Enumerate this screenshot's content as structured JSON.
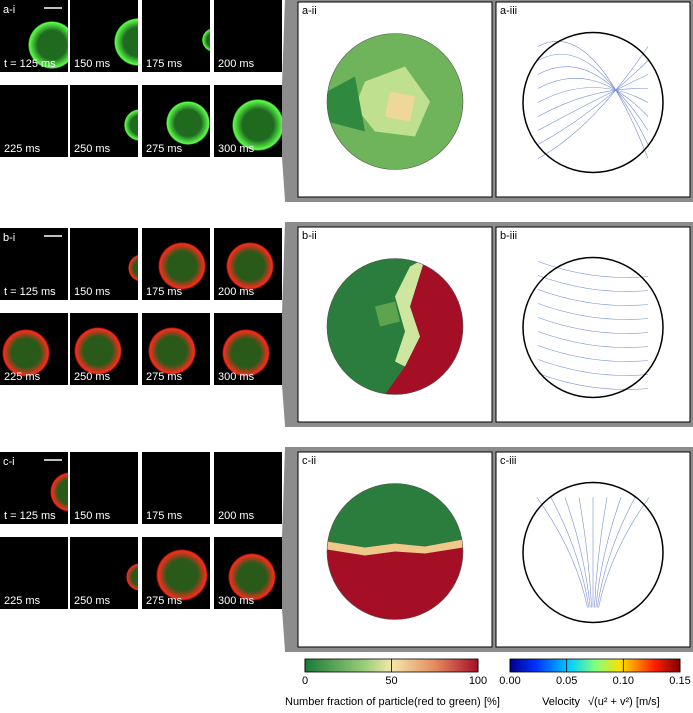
{
  "rows": [
    {
      "label_i": "a-i",
      "label_ii": "a-ii",
      "label_iii": "a-iii",
      "frames": [
        "t = 125 ms",
        "150 ms",
        "175 ms",
        "200 ms",
        "225 ms",
        "250 ms",
        "275 ms",
        "300 ms"
      ]
    },
    {
      "label_i": "b-i",
      "label_ii": "b-ii",
      "label_iii": "b-iii",
      "frames": [
        "t = 125 ms",
        "150 ms",
        "175 ms",
        "200 ms",
        "225 ms",
        "250 ms",
        "275 ms",
        "300 ms"
      ]
    },
    {
      "label_i": "c-i",
      "label_ii": "c-ii",
      "label_iii": "c-iii",
      "frames": [
        "t = 125 ms",
        "150 ms",
        "175 ms",
        "200 ms",
        "225 ms",
        "250 ms",
        "275 ms",
        "300 ms"
      ]
    }
  ],
  "colorbars": [
    {
      "label": "Number fraction of    particle(red to green)",
      "unit": "[%]",
      "lim": [
        0,
        100
      ],
      "ticks": [
        0,
        50,
        100
      ]
    },
    {
      "label": "Velocity",
      "unit": "√(u² + v²) [m/s]",
      "lim": [
        0,
        0.15
      ],
      "ticks": [
        {
          "value": 0,
          "label": "0.00"
        },
        {
          "value": 0.05,
          "label": "0.05"
        },
        {
          "value": 0.1,
          "label": "0.10"
        },
        {
          "value": 0.15,
          "label": "0.15"
        }
      ]
    }
  ]
}
